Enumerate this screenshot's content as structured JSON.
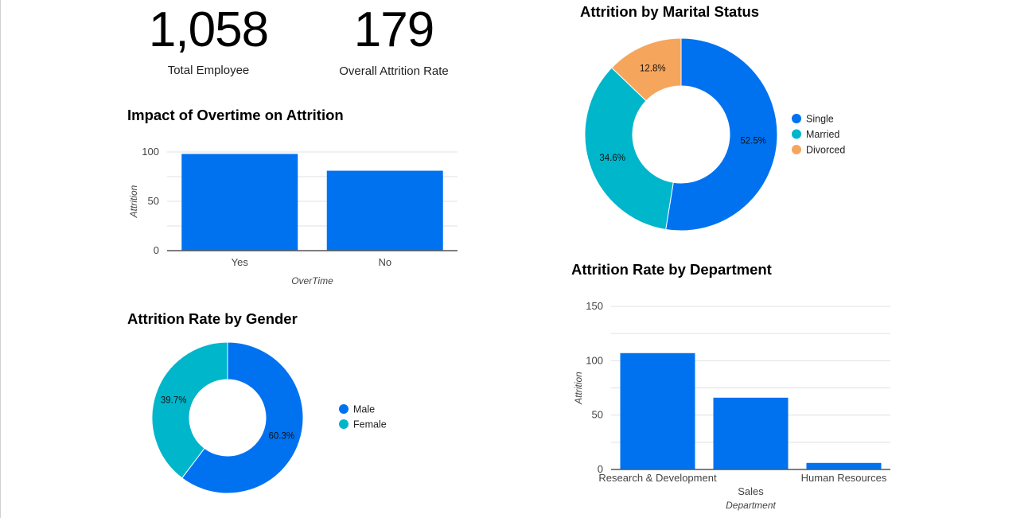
{
  "kpis": {
    "total_employee": {
      "value": "1,058",
      "label": "Total Employee"
    },
    "attrition_rate": {
      "value": "179",
      "label": "Overall Attrition Rate"
    }
  },
  "colors": {
    "blue": "#0072f0",
    "teal": "#00b6cb",
    "orange": "#f6a55d",
    "grid": "#e0e0e0",
    "axis": "#555555"
  },
  "chart_data": [
    {
      "id": "overtime",
      "type": "bar",
      "title": "Impact of Overtime on Attrition",
      "xlabel": "OverTime",
      "ylabel": "Attrition",
      "categories": [
        "Yes",
        "No"
      ],
      "values": [
        98,
        81
      ],
      "yticks": [
        0,
        50,
        100
      ],
      "ylim": [
        0,
        100
      ]
    },
    {
      "id": "gender",
      "type": "pie",
      "title": "Attrition Rate by Gender",
      "labels": [
        "Male",
        "Female"
      ],
      "values": [
        60.3,
        39.7
      ],
      "value_labels": [
        "60.3%",
        "39.7%"
      ],
      "legend_position": "right"
    },
    {
      "id": "marital",
      "type": "pie",
      "title": "Attrition by Marital Status",
      "labels": [
        "Single",
        "Married",
        "Divorced"
      ],
      "values": [
        52.5,
        34.6,
        12.8
      ],
      "value_labels": [
        "52.5%",
        "34.6%",
        "12.8%"
      ],
      "legend_position": "right"
    },
    {
      "id": "department",
      "type": "bar",
      "title": "Attrition Rate by Department",
      "xlabel": "Department",
      "ylabel": "Attrition",
      "categories": [
        "Research & Development",
        "Sales",
        "Human Resources"
      ],
      "values": [
        107,
        66,
        6
      ],
      "yticks": [
        0,
        50,
        100,
        150
      ],
      "ylim": [
        0,
        150
      ]
    }
  ]
}
